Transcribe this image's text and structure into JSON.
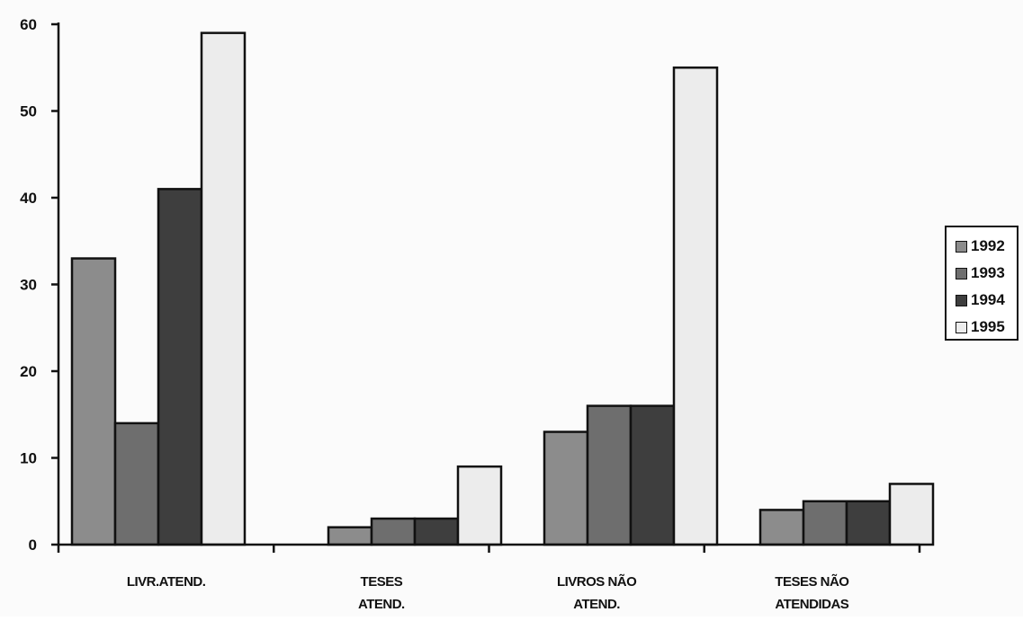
{
  "chart_data": {
    "type": "bar",
    "categories": [
      [
        "LIVR.ATEND."
      ],
      [
        "TESES",
        "ATEND."
      ],
      [
        "LIVROS NÃO",
        "ATEND."
      ],
      [
        "TESES NÃO",
        "ATENDIDAS"
      ]
    ],
    "series": [
      {
        "name": "1992",
        "values": [
          33,
          2,
          13,
          4
        ],
        "color": "#8c8c8c"
      },
      {
        "name": "1993",
        "values": [
          14,
          3,
          16,
          5
        ],
        "color": "#6e6e6e"
      },
      {
        "name": "1994",
        "values": [
          41,
          3,
          16,
          5
        ],
        "color": "#3e3e3e"
      },
      {
        "name": "1995",
        "values": [
          59,
          9,
          55,
          7
        ],
        "color": "#ececec"
      }
    ],
    "ylim": [
      0,
      60
    ],
    "yticks": [
      0,
      10,
      20,
      30,
      40,
      50,
      60
    ],
    "grid": false,
    "legend_position": "right"
  }
}
